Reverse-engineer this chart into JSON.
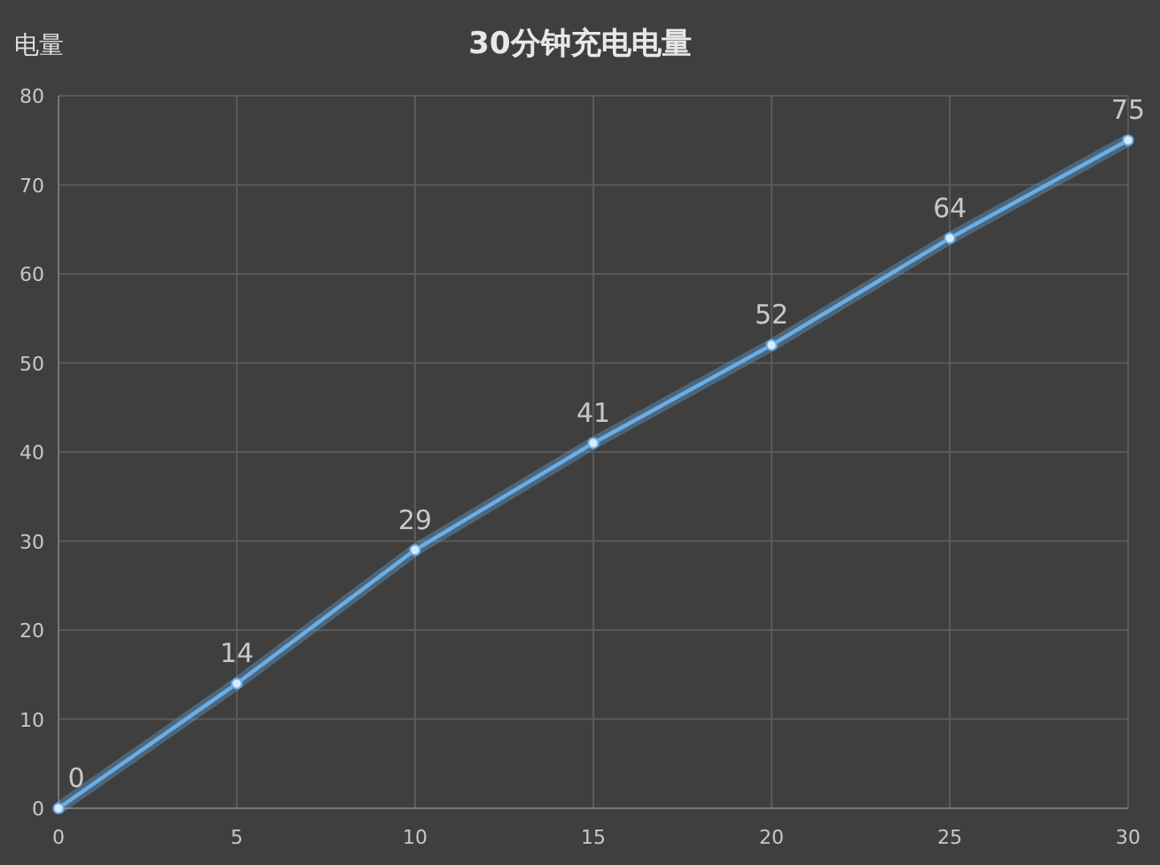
{
  "chart_data": {
    "type": "line",
    "title": "30分钟充电电量",
    "ylabel": "电量",
    "x": [
      0,
      5,
      10,
      15,
      20,
      25,
      30
    ],
    "series": [
      {
        "color": "#6aaee8",
        "values": [
          0,
          14,
          29,
          41,
          52,
          64,
          75
        ]
      }
    ],
    "xlim": [
      0,
      30
    ],
    "xticks": [
      0,
      5,
      10,
      15,
      20,
      25,
      30
    ],
    "ylim": [
      0,
      80
    ],
    "yticks": [
      0,
      10,
      20,
      30,
      40,
      50,
      60,
      70,
      80
    ],
    "grid": true,
    "marker": "circle",
    "data_labels": true,
    "line_style": "solid"
  }
}
